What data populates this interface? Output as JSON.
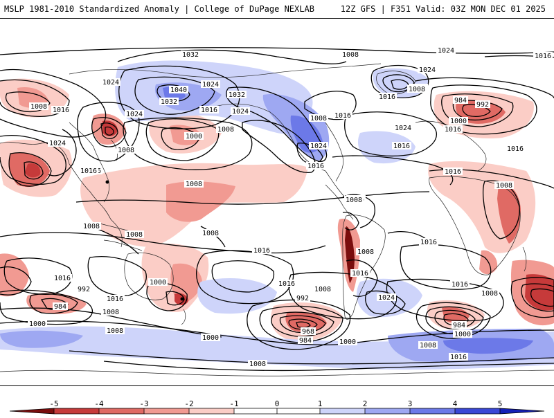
{
  "header": {
    "title_left": "MSLP 1981-2010 Standardized Anomaly | College of DuPage NEXLAB",
    "title_right": "12Z GFS | F351 Valid: 03Z MON DEC 01 2025"
  },
  "colors": {
    "neg5": "#7a0d0d",
    "neg4": "#c63a3a",
    "neg3": "#e06a64",
    "neg2": "#f19a92",
    "neg1": "#fbcdc6",
    "zero": "#ffffff",
    "pos1": "#ced4fa",
    "pos2": "#9ea8f2",
    "pos3": "#6c79e8",
    "pos4": "#3a47d6",
    "pos5": "#1420b8",
    "contour": "#000000",
    "coast": "#222222"
  },
  "colorbar": {
    "ticks": [
      "-5",
      "-4",
      "-3",
      "-2",
      "-1",
      "0",
      "1",
      "2",
      "3",
      "4",
      "5"
    ]
  },
  "contour_labels": [
    "1032",
    "1024",
    "1016",
    "1008",
    "1000",
    "992",
    "984",
    "968",
    "1040"
  ],
  "map_labels": [
    {
      "id": "l1",
      "text": "1032"
    },
    {
      "id": "l2",
      "text": "1024"
    },
    {
      "id": "l3",
      "text": "1016"
    },
    {
      "id": "l4",
      "text": "1008"
    },
    {
      "id": "l5",
      "text": "1024"
    },
    {
      "id": "l6",
      "text": "1016"
    },
    {
      "id": "l7",
      "text": "1008"
    },
    {
      "id": "l8",
      "text": "1024"
    },
    {
      "id": "l9",
      "text": "1040"
    },
    {
      "id": "l10",
      "text": "1032"
    },
    {
      "id": "l11",
      "text": "1032"
    },
    {
      "id": "l12",
      "text": "1024"
    },
    {
      "id": "l13",
      "text": "1024"
    },
    {
      "id": "l14",
      "text": "1016"
    },
    {
      "id": "l15",
      "text": "1008"
    },
    {
      "id": "l16",
      "text": "1000"
    },
    {
      "id": "l17",
      "text": "1008"
    },
    {
      "id": "l18",
      "text": "1024"
    },
    {
      "id": "l19",
      "text": "1016"
    },
    {
      "id": "l20",
      "text": "1008"
    },
    {
      "id": "l21",
      "text": "1008"
    },
    {
      "id": "l22",
      "text": "1016"
    },
    {
      "id": "l23",
      "text": "1016"
    },
    {
      "id": "l24",
      "text": "1024"
    },
    {
      "id": "l25",
      "text": "1016"
    },
    {
      "id": "l26",
      "text": "1024"
    },
    {
      "id": "l27",
      "text": "1016"
    },
    {
      "id": "l28",
      "text": "1008"
    },
    {
      "id": "l29",
      "text": "1024"
    },
    {
      "id": "l30",
      "text": "1016"
    },
    {
      "id": "l31",
      "text": "1016"
    },
    {
      "id": "l32",
      "text": "984"
    },
    {
      "id": "l33",
      "text": "992"
    },
    {
      "id": "l34",
      "text": "1000"
    },
    {
      "id": "l35",
      "text": "1016"
    },
    {
      "id": "l36",
      "text": "1016"
    },
    {
      "id": "l37",
      "text": "1016"
    },
    {
      "id": "l38",
      "text": "1008"
    },
    {
      "id": "l39",
      "text": "1008"
    },
    {
      "id": "l40",
      "text": "1008"
    },
    {
      "id": "l41",
      "text": "1008"
    },
    {
      "id": "l42",
      "text": "1016"
    },
    {
      "id": "l43",
      "text": "1008"
    },
    {
      "id": "l44",
      "text": "1016"
    },
    {
      "id": "l45",
      "text": "1008"
    },
    {
      "id": "l46",
      "text": "1016"
    },
    {
      "id": "l47",
      "text": "1016"
    },
    {
      "id": "l48",
      "text": "1016"
    },
    {
      "id": "l49",
      "text": "992"
    },
    {
      "id": "l50",
      "text": "984"
    },
    {
      "id": "l51",
      "text": "1016"
    },
    {
      "id": "l52",
      "text": "1008"
    },
    {
      "id": "l53",
      "text": "1000"
    },
    {
      "id": "l54",
      "text": "1008"
    },
    {
      "id": "l55",
      "text": "1000"
    },
    {
      "id": "l56",
      "text": "1000"
    },
    {
      "id": "l57",
      "text": "1016"
    },
    {
      "id": "l58",
      "text": "1008"
    },
    {
      "id": "l59",
      "text": "992"
    },
    {
      "id": "l60",
      "text": "968"
    },
    {
      "id": "l61",
      "text": "984"
    },
    {
      "id": "l62",
      "text": "1000"
    },
    {
      "id": "l63",
      "text": "1024"
    },
    {
      "id": "l64",
      "text": "1016"
    },
    {
      "id": "l65",
      "text": "1008"
    },
    {
      "id": "l66",
      "text": "984"
    },
    {
      "id": "l67",
      "text": "1000"
    },
    {
      "id": "l68",
      "text": "1008"
    },
    {
      "id": "l69",
      "text": "1016"
    },
    {
      "id": "l70",
      "text": "1008"
    },
    {
      "id": "l71",
      "text": "1016"
    },
    {
      "id": "l72",
      "text": "1008"
    }
  ]
}
